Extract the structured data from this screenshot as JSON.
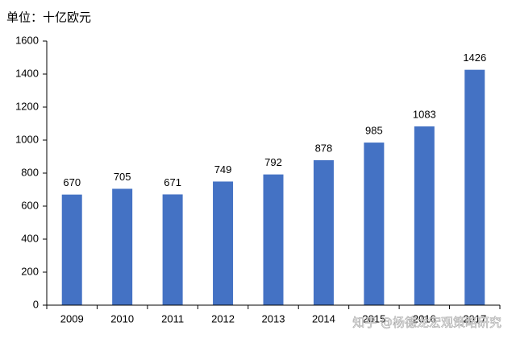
{
  "chart_data": {
    "type": "bar",
    "title": "单位：十亿欧元",
    "categories": [
      "2009",
      "2010",
      "2011",
      "2012",
      "2013",
      "2014",
      "2015",
      "2016",
      "2017"
    ],
    "values": [
      670,
      705,
      671,
      749,
      792,
      878,
      985,
      1083,
      1426
    ],
    "color": "#4472c4",
    "ylim": [
      0,
      1600
    ],
    "yticks": [
      0,
      200,
      400,
      600,
      800,
      1000,
      1200,
      1400,
      1600
    ],
    "grid": false,
    "annotation": "知乎 @杨德龙宏观策略研究"
  }
}
